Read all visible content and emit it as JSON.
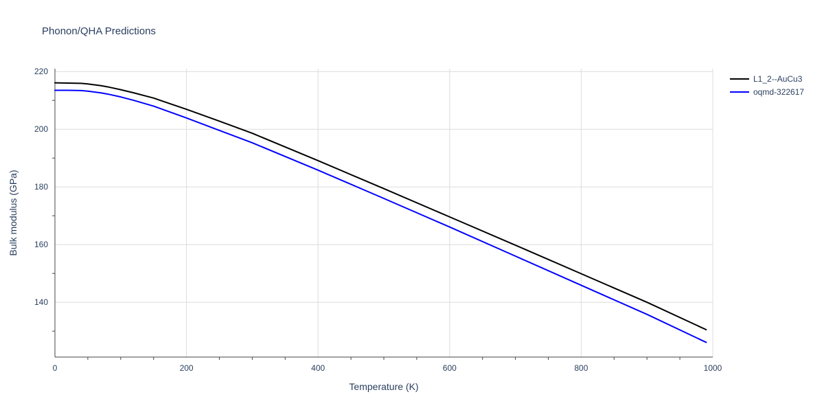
{
  "chart_data": {
    "type": "line",
    "title": "Phonon/QHA Predictions",
    "xlabel": "Temperature (K)",
    "ylabel": "Bulk modulus (GPa)",
    "xlim": [
      0,
      1000
    ],
    "ylim": [
      121,
      221
    ],
    "x_ticks": [
      0,
      200,
      400,
      600,
      800,
      1000
    ],
    "y_ticks": [
      140,
      160,
      180,
      200,
      220
    ],
    "grid": true,
    "legend_position": "top-right",
    "series": [
      {
        "name": "L1_2--AuCu3",
        "color": "#000000",
        "x": [
          0,
          20,
          40,
          50,
          60,
          70,
          80,
          100,
          120,
          150,
          200,
          250,
          300,
          400,
          500,
          600,
          700,
          800,
          900,
          990
        ],
        "y": [
          216.1,
          216.0,
          215.9,
          215.7,
          215.4,
          215.1,
          214.7,
          213.7,
          212.6,
          210.8,
          206.9,
          202.8,
          198.6,
          189.1,
          179.4,
          169.6,
          159.8,
          149.9,
          140.0,
          130.5
        ]
      },
      {
        "name": "oqmd-322617",
        "color": "#0000ff",
        "x": [
          0,
          20,
          40,
          50,
          60,
          70,
          80,
          100,
          120,
          150,
          200,
          250,
          300,
          400,
          500,
          600,
          700,
          800,
          900,
          990
        ],
        "y": [
          213.5,
          213.5,
          213.4,
          213.2,
          212.9,
          212.6,
          212.2,
          211.2,
          210.0,
          208.0,
          203.9,
          199.6,
          195.3,
          185.8,
          176.0,
          166.1,
          156.0,
          145.9,
          135.8,
          126.1
        ]
      }
    ]
  }
}
